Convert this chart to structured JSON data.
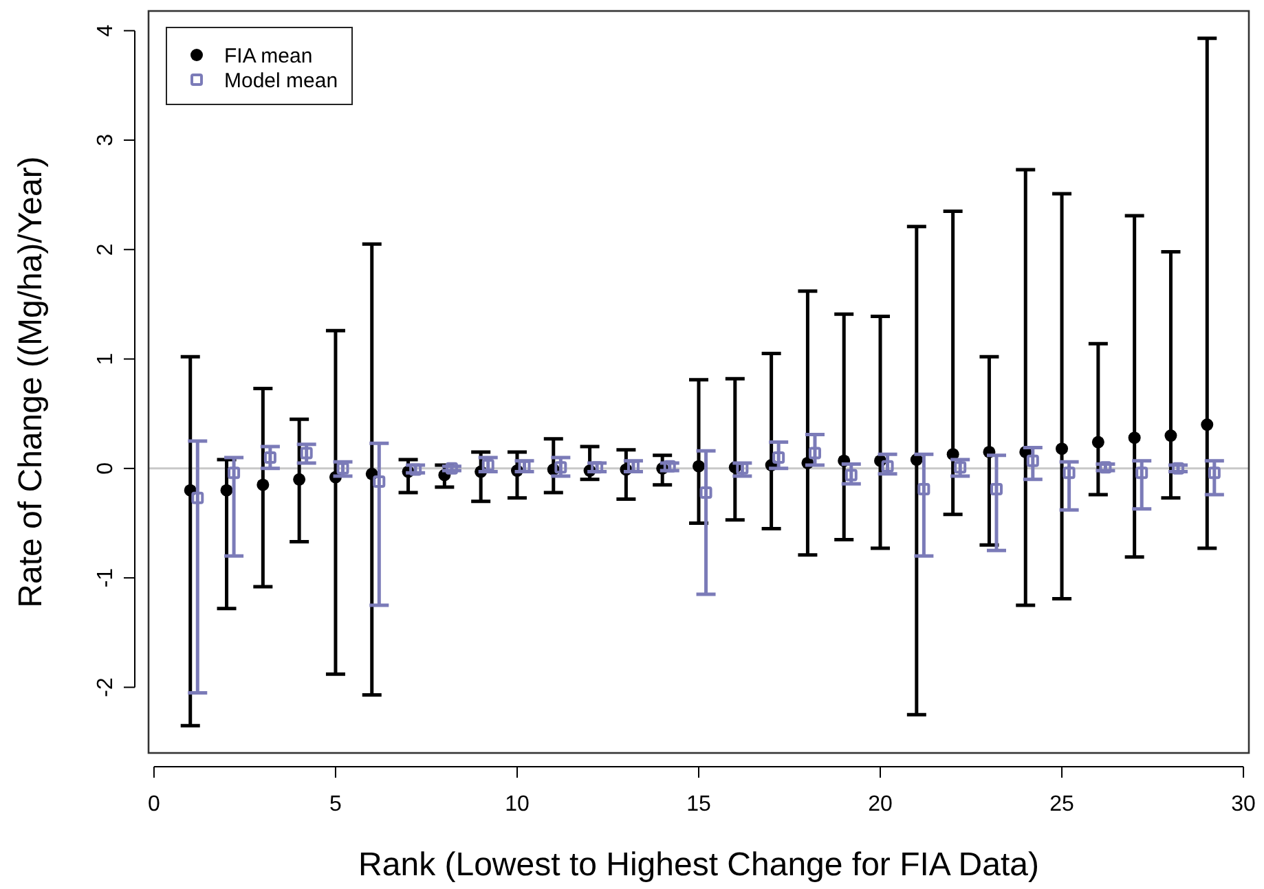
{
  "chart_data": {
    "type": "scatter",
    "xlabel": "Rank (Lowest to Highest Change for FIA Data)",
    "ylabel": "Rate of Change ((Mg/ha)/Year)",
    "xlim": [
      -0.15,
      30.15
    ],
    "xticks": [
      0,
      5,
      10,
      15,
      20,
      25,
      30
    ],
    "ylim": [
      -2.6,
      4.18
    ],
    "yticks": [
      -2,
      -1,
      0,
      1,
      2,
      3,
      4
    ],
    "legend": "top left",
    "grid": false,
    "ref_lines": [
      {
        "axis": "y",
        "value": 0,
        "color": "#c8c8c8"
      }
    ],
    "series": [
      {
        "name": "FIA mean",
        "color": "#000000",
        "marker": "circle",
        "x": [
          1,
          2,
          3,
          4,
          5,
          6,
          7,
          8,
          9,
          10,
          11,
          12,
          13,
          14,
          15,
          16,
          17,
          18,
          19,
          20,
          21,
          22,
          23,
          24,
          25,
          26,
          27,
          28,
          29
        ],
        "values": [
          -0.2,
          -0.2,
          -0.15,
          -0.1,
          -0.08,
          -0.05,
          -0.03,
          -0.06,
          -0.03,
          -0.02,
          -0.01,
          -0.02,
          -0.01,
          0.0,
          0.02,
          0.01,
          0.03,
          0.05,
          0.07,
          0.07,
          0.08,
          0.13,
          0.15,
          0.15,
          0.18,
          0.24,
          0.28,
          0.3,
          0.4
        ],
        "errors": [
          [
            -2.35,
            1.02
          ],
          [
            -1.28,
            0.08
          ],
          [
            -1.08,
            0.73
          ],
          [
            -0.67,
            0.45
          ],
          [
            -1.88,
            1.26
          ],
          [
            -2.07,
            2.05
          ],
          [
            -0.22,
            0.08
          ],
          [
            -0.17,
            0.03
          ],
          [
            -0.3,
            0.15
          ],
          [
            -0.27,
            0.15
          ],
          [
            -0.22,
            0.27
          ],
          [
            -0.1,
            0.2
          ],
          [
            -0.28,
            0.17
          ],
          [
            -0.15,
            0.12
          ],
          [
            -0.5,
            0.81
          ],
          [
            -0.47,
            0.82
          ],
          [
            -0.55,
            1.05
          ],
          [
            -0.79,
            1.62
          ],
          [
            -0.65,
            1.41
          ],
          [
            -0.73,
            1.39
          ],
          [
            -2.25,
            2.21
          ],
          [
            -0.42,
            2.35
          ],
          [
            -0.7,
            1.02
          ],
          [
            -1.25,
            2.73
          ],
          [
            -1.19,
            2.51
          ],
          [
            -0.24,
            1.14
          ],
          [
            -0.81,
            2.31
          ],
          [
            -0.27,
            1.98
          ],
          [
            -0.73,
            3.93
          ]
        ]
      },
      {
        "name": "Model mean",
        "color": "#7b7bb8",
        "marker": "square",
        "x": [
          1.2,
          2.2,
          3.2,
          4.2,
          5.2,
          6.2,
          7.2,
          8.2,
          9.2,
          10.2,
          11.2,
          12.2,
          13.2,
          14.2,
          15.2,
          16.2,
          17.2,
          18.2,
          19.2,
          20.2,
          21.2,
          22.2,
          23.2,
          24.2,
          25.2,
          26.2,
          27.2,
          28.2,
          29.2
        ],
        "values": [
          -0.27,
          -0.04,
          0.1,
          0.14,
          0.0,
          -0.12,
          -0.01,
          0.0,
          0.03,
          0.02,
          0.01,
          0.01,
          0.02,
          0.02,
          -0.22,
          0.0,
          0.1,
          0.14,
          -0.06,
          0.02,
          -0.19,
          0.01,
          -0.19,
          0.07,
          -0.04,
          0.01,
          -0.04,
          0.0,
          -0.04
        ],
        "errors": [
          [
            -2.05,
            0.25
          ],
          [
            -0.8,
            0.1
          ],
          [
            0.0,
            0.2
          ],
          [
            0.05,
            0.22
          ],
          [
            -0.07,
            0.06
          ],
          [
            -1.25,
            0.23
          ],
          [
            -0.04,
            0.03
          ],
          [
            -0.02,
            0.02
          ],
          [
            -0.03,
            0.1
          ],
          [
            -0.03,
            0.07
          ],
          [
            -0.07,
            0.1
          ],
          [
            -0.03,
            0.05
          ],
          [
            -0.03,
            0.07
          ],
          [
            -0.02,
            0.05
          ],
          [
            -1.15,
            0.16
          ],
          [
            -0.07,
            0.05
          ],
          [
            0.0,
            0.24
          ],
          [
            0.03,
            0.31
          ],
          [
            -0.14,
            0.04
          ],
          [
            -0.05,
            0.13
          ],
          [
            -0.8,
            0.13
          ],
          [
            -0.07,
            0.08
          ],
          [
            -0.75,
            0.12
          ],
          [
            -0.1,
            0.19
          ],
          [
            -0.38,
            0.06
          ],
          [
            -0.02,
            0.04
          ],
          [
            -0.37,
            0.07
          ],
          [
            -0.03,
            0.03
          ],
          [
            -0.24,
            0.07
          ]
        ]
      }
    ]
  }
}
